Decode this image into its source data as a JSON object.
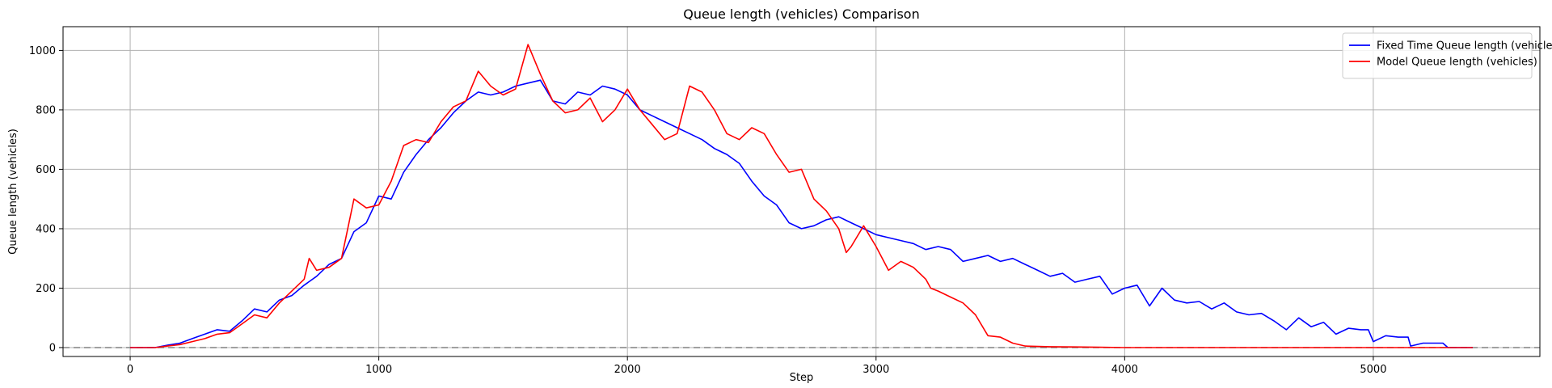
{
  "chart_data": {
    "type": "line",
    "title": "Queue length (vehicles) Comparison",
    "xlabel": "Step",
    "ylabel": "Queue length (vehicles)",
    "xlim": [
      -270,
      5670
    ],
    "ylim": [
      -30,
      1080
    ],
    "xticks": [
      0,
      1000,
      2000,
      3000,
      4000,
      5000
    ],
    "yticks": [
      0,
      200,
      400,
      600,
      800,
      1000
    ],
    "grid": true,
    "legend_position": "top-right",
    "reference_line": {
      "y": 0,
      "style": "dashed",
      "color": "#808080"
    },
    "series": [
      {
        "name": "Fixed Time Queue length (vehicles)",
        "color": "#0000ff",
        "points": [
          [
            0,
            0
          ],
          [
            100,
            0
          ],
          [
            150,
            8
          ],
          [
            200,
            15
          ],
          [
            250,
            30
          ],
          [
            300,
            45
          ],
          [
            350,
            60
          ],
          [
            400,
            55
          ],
          [
            450,
            90
          ],
          [
            500,
            130
          ],
          [
            550,
            120
          ],
          [
            600,
            160
          ],
          [
            650,
            175
          ],
          [
            700,
            210
          ],
          [
            750,
            240
          ],
          [
            800,
            280
          ],
          [
            850,
            300
          ],
          [
            900,
            390
          ],
          [
            950,
            420
          ],
          [
            1000,
            510
          ],
          [
            1050,
            500
          ],
          [
            1100,
            590
          ],
          [
            1150,
            650
          ],
          [
            1200,
            700
          ],
          [
            1250,
            740
          ],
          [
            1300,
            790
          ],
          [
            1350,
            830
          ],
          [
            1400,
            860
          ],
          [
            1450,
            850
          ],
          [
            1500,
            860
          ],
          [
            1550,
            880
          ],
          [
            1600,
            890
          ],
          [
            1650,
            900
          ],
          [
            1700,
            830
          ],
          [
            1750,
            820
          ],
          [
            1800,
            860
          ],
          [
            1850,
            850
          ],
          [
            1900,
            880
          ],
          [
            1950,
            870
          ],
          [
            2000,
            850
          ],
          [
            2050,
            800
          ],
          [
            2100,
            780
          ],
          [
            2150,
            760
          ],
          [
            2200,
            740
          ],
          [
            2250,
            720
          ],
          [
            2300,
            700
          ],
          [
            2350,
            670
          ],
          [
            2400,
            650
          ],
          [
            2450,
            620
          ],
          [
            2500,
            560
          ],
          [
            2550,
            510
          ],
          [
            2600,
            480
          ],
          [
            2650,
            420
          ],
          [
            2700,
            400
          ],
          [
            2750,
            410
          ],
          [
            2800,
            430
          ],
          [
            2850,
            440
          ],
          [
            2900,
            420
          ],
          [
            2950,
            400
          ],
          [
            3000,
            380
          ],
          [
            3050,
            370
          ],
          [
            3100,
            360
          ],
          [
            3150,
            350
          ],
          [
            3200,
            330
          ],
          [
            3250,
            340
          ],
          [
            3300,
            330
          ],
          [
            3350,
            290
          ],
          [
            3400,
            300
          ],
          [
            3450,
            310
          ],
          [
            3500,
            290
          ],
          [
            3550,
            300
          ],
          [
            3600,
            280
          ],
          [
            3650,
            260
          ],
          [
            3700,
            240
          ],
          [
            3750,
            250
          ],
          [
            3800,
            220
          ],
          [
            3850,
            230
          ],
          [
            3900,
            240
          ],
          [
            3950,
            180
          ],
          [
            4000,
            200
          ],
          [
            4050,
            210
          ],
          [
            4100,
            140
          ],
          [
            4150,
            200
          ],
          [
            4200,
            160
          ],
          [
            4250,
            150
          ],
          [
            4300,
            155
          ],
          [
            4350,
            130
          ],
          [
            4400,
            150
          ],
          [
            4450,
            120
          ],
          [
            4500,
            110
          ],
          [
            4550,
            115
          ],
          [
            4600,
            90
          ],
          [
            4650,
            60
          ],
          [
            4700,
            100
          ],
          [
            4750,
            70
          ],
          [
            4800,
            85
          ],
          [
            4850,
            45
          ],
          [
            4900,
            65
          ],
          [
            4950,
            60
          ],
          [
            4980,
            60
          ],
          [
            5000,
            20
          ],
          [
            5050,
            40
          ],
          [
            5100,
            35
          ],
          [
            5140,
            35
          ],
          [
            5150,
            5
          ],
          [
            5200,
            15
          ],
          [
            5280,
            15
          ],
          [
            5300,
            0
          ],
          [
            5400,
            0
          ]
        ]
      },
      {
        "name": "Model Queue length (vehicles)",
        "color": "#ff0000",
        "points": [
          [
            0,
            0
          ],
          [
            100,
            0
          ],
          [
            150,
            5
          ],
          [
            200,
            10
          ],
          [
            250,
            20
          ],
          [
            300,
            30
          ],
          [
            350,
            45
          ],
          [
            400,
            50
          ],
          [
            450,
            80
          ],
          [
            500,
            110
          ],
          [
            550,
            100
          ],
          [
            600,
            150
          ],
          [
            650,
            190
          ],
          [
            700,
            230
          ],
          [
            720,
            300
          ],
          [
            750,
            260
          ],
          [
            800,
            270
          ],
          [
            850,
            300
          ],
          [
            900,
            500
          ],
          [
            950,
            470
          ],
          [
            1000,
            480
          ],
          [
            1050,
            560
          ],
          [
            1100,
            680
          ],
          [
            1150,
            700
          ],
          [
            1200,
            690
          ],
          [
            1250,
            760
          ],
          [
            1300,
            810
          ],
          [
            1350,
            830
          ],
          [
            1400,
            930
          ],
          [
            1450,
            880
          ],
          [
            1500,
            850
          ],
          [
            1550,
            870
          ],
          [
            1600,
            1020
          ],
          [
            1650,
            920
          ],
          [
            1700,
            830
          ],
          [
            1750,
            790
          ],
          [
            1800,
            800
          ],
          [
            1850,
            840
          ],
          [
            1900,
            760
          ],
          [
            1950,
            800
          ],
          [
            2000,
            870
          ],
          [
            2050,
            800
          ],
          [
            2100,
            750
          ],
          [
            2150,
            700
          ],
          [
            2200,
            720
          ],
          [
            2250,
            880
          ],
          [
            2300,
            860
          ],
          [
            2350,
            800
          ],
          [
            2400,
            720
          ],
          [
            2450,
            700
          ],
          [
            2500,
            740
          ],
          [
            2550,
            720
          ],
          [
            2600,
            650
          ],
          [
            2650,
            590
          ],
          [
            2700,
            600
          ],
          [
            2750,
            500
          ],
          [
            2800,
            460
          ],
          [
            2850,
            400
          ],
          [
            2880,
            320
          ],
          [
            2900,
            340
          ],
          [
            2950,
            410
          ],
          [
            3000,
            340
          ],
          [
            3050,
            260
          ],
          [
            3100,
            290
          ],
          [
            3150,
            270
          ],
          [
            3200,
            230
          ],
          [
            3220,
            200
          ],
          [
            3250,
            190
          ],
          [
            3300,
            170
          ],
          [
            3350,
            150
          ],
          [
            3400,
            110
          ],
          [
            3450,
            40
          ],
          [
            3500,
            35
          ],
          [
            3550,
            15
          ],
          [
            3600,
            5
          ],
          [
            3700,
            3
          ],
          [
            3800,
            2
          ],
          [
            3900,
            1
          ],
          [
            4000,
            0
          ],
          [
            5400,
            0
          ]
        ]
      }
    ]
  }
}
